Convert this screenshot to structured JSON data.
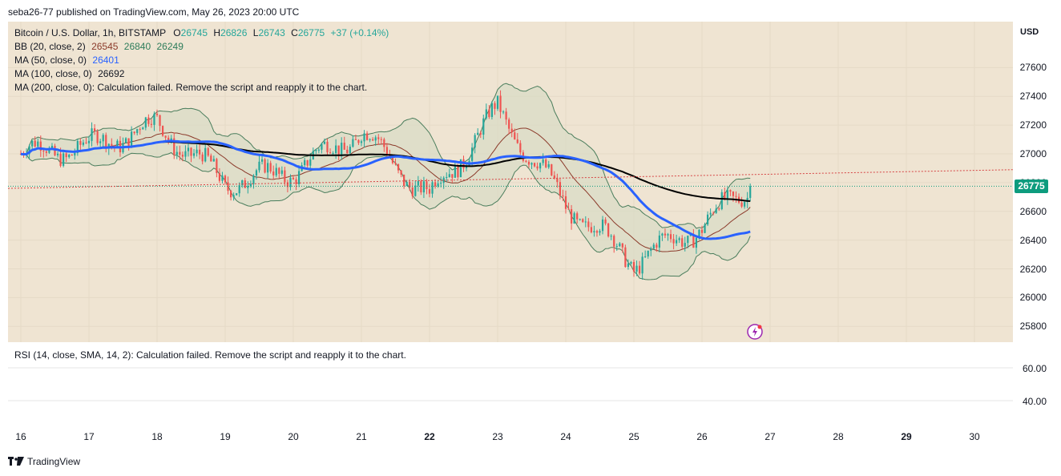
{
  "header": {
    "published": "seba26-77 published on TradingView.com, May 26, 2023 20:00 UTC"
  },
  "legend": {
    "symbol": "Bitcoin / U.S. Dollar, 1h, BITSTAMP",
    "o_label": "O",
    "o": "26745",
    "h_label": "H",
    "h": "26826",
    "l_label": "L",
    "l": "26743",
    "c_label": "C",
    "c": "26775",
    "change": "+37 (+0.14%)",
    "bb_label": "BB (20, close, 2)",
    "bb_basis": "26545",
    "bb_upper": "26840",
    "bb_lower": "26249",
    "ma50_label": "MA (50, close, 0)",
    "ma50": "26401",
    "ma100_label": "MA (100, close, 0)",
    "ma100": "26692",
    "ma200_label": "MA (200, close, 0): Calculation failed. Remove the script and reapply it to the chart."
  },
  "rsi": {
    "label": "RSI (14, close, SMA, 14, 2): Calculation failed. Remove the script and reapply it to the chart."
  },
  "axis": {
    "currency": "USD",
    "current_price": "26775"
  },
  "footer": {
    "brand": "TradingView"
  },
  "colors": {
    "up": "#26a69a",
    "down": "#ef5350",
    "ma50": "#2962ff",
    "ma100": "#000000",
    "bb": "#4a7d5c",
    "bb_basis": "#8b3a2a",
    "pane_bg": "#efe4d2",
    "price_tag": "#0d9c7e"
  },
  "chart_data": {
    "type": "candlestick",
    "symbol": "Bitcoin / U.S. Dollar, 1h, BITSTAMP",
    "x_ticks": [
      "16",
      "17",
      "18",
      "19",
      "20",
      "21",
      "22",
      "23",
      "24",
      "25",
      "26",
      "27",
      "28",
      "29",
      "30"
    ],
    "x_bold": [
      "22",
      "29"
    ],
    "y_ticks": [
      25800,
      26000,
      26200,
      26400,
      26600,
      26800,
      27000,
      27200,
      27400,
      27600
    ],
    "ylim": [
      25690,
      27920
    ],
    "rsi_ticks": [
      "60.00",
      "40.00"
    ],
    "closes_daily_approx": [
      {
        "day": "16",
        "close": 27000
      },
      {
        "day": "17",
        "close": 27050
      },
      {
        "day": "18",
        "close": 27200
      },
      {
        "day": "19",
        "close": 26800
      },
      {
        "day": "20",
        "close": 26880
      },
      {
        "day": "21",
        "close": 27150
      },
      {
        "day": "22",
        "close": 26700
      },
      {
        "day": "23",
        "close": 27300
      },
      {
        "day": "24",
        "close": 26650
      },
      {
        "day": "25",
        "close": 26250
      },
      {
        "day": "26",
        "close": 26500
      },
      {
        "day": "26.7",
        "close": 26775
      }
    ],
    "series": [
      {
        "name": "MA (50, close, 0)",
        "last": 26401
      },
      {
        "name": "MA (100, close, 0)",
        "last": 26692
      },
      {
        "name": "BB (20, close, 2)",
        "basis": 26545,
        "upper": 26840,
        "lower": 26249
      }
    ]
  }
}
